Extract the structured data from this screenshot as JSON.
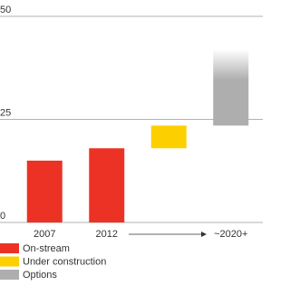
{
  "chart_data": {
    "type": "waterfall",
    "categories": [
      "2007",
      "2012",
      null,
      "~2020+"
    ],
    "series": [
      {
        "name": "On-stream",
        "color": "#ec3224",
        "values": [
          15,
          18,
          null,
          null
        ]
      },
      {
        "name": "Under construction",
        "color": "#fcd000",
        "values": [
          null,
          null,
          5.5,
          null
        ]
      },
      {
        "name": "Options",
        "color": "#aeaeae",
        "values": [
          null,
          null,
          null,
          18.5
        ]
      }
    ],
    "ylim": [
      0,
      50
    ],
    "yticks": [
      0,
      25,
      50
    ],
    "grid": true
  }
}
